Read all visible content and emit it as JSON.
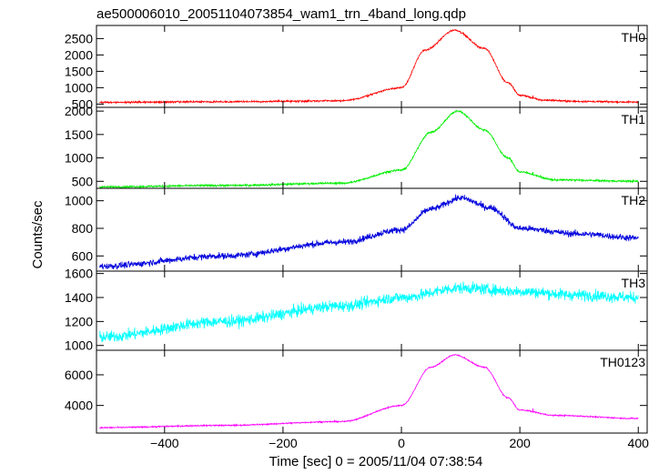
{
  "chart_data": {
    "type": "line",
    "title": "ae500006010_20051104073854_wam1_trn_4band_long.qdp",
    "xlabel": "Time [sec] 0 = 2005/11/04 07:38:54",
    "ylabel": "Counts/sec",
    "xlim": [
      -515,
      415
    ],
    "xticks": [
      -400,
      -200,
      0,
      200,
      400
    ],
    "xtick_labels": [
      "−400",
      "−200",
      "0",
      "200",
      "400"
    ],
    "grid": false,
    "panels": [
      {
        "name": "TH0",
        "color": "#ff0000",
        "ylim": [
          400,
          2900
        ],
        "yticks": [
          500,
          1000,
          1500,
          2000,
          2500
        ],
        "baseline_start": 560,
        "baseline_end": 560,
        "tail_level": 560,
        "peak_time": 90,
        "peak_value": 2750,
        "peak_width": 55,
        "noise": 25,
        "spike": {
          "x": 222,
          "y": 760
        },
        "points": [
          [
            -510,
            555
          ],
          [
            -300,
            570
          ],
          [
            -100,
            600
          ],
          [
            0,
            1000
          ],
          [
            40,
            2150
          ],
          [
            90,
            2760
          ],
          [
            140,
            2200
          ],
          [
            180,
            1150
          ],
          [
            200,
            770
          ],
          [
            240,
            620
          ],
          [
            300,
            580
          ],
          [
            400,
            560
          ]
        ]
      },
      {
        "name": "TH1",
        "color": "#00ee00",
        "ylim": [
          350,
          2080
        ],
        "yticks": [
          500,
          1000,
          1500,
          2000
        ],
        "baseline_start": 380,
        "baseline_end": 470,
        "tail_level": 480,
        "peak_time": 95,
        "peak_value": 2000,
        "peak_width": 52,
        "noise": 20,
        "spike": {
          "x": 222,
          "y": 700
        },
        "points": [
          [
            -510,
            380
          ],
          [
            -300,
            410
          ],
          [
            -100,
            460
          ],
          [
            0,
            740
          ],
          [
            50,
            1550
          ],
          [
            95,
            2000
          ],
          [
            140,
            1600
          ],
          [
            180,
            1000
          ],
          [
            200,
            700
          ],
          [
            260,
            530
          ],
          [
            400,
            500
          ]
        ]
      },
      {
        "name": "TH2",
        "color": "#0000dd",
        "ylim": [
          490,
          1090
        ],
        "yticks": [
          600,
          800,
          1000
        ],
        "baseline_start": 530,
        "baseline_end": 725,
        "tail_level": 740,
        "peak_time": 100,
        "peak_value": 1020,
        "peak_width": 70,
        "noise": 22,
        "spike": null,
        "points": [
          [
            -510,
            525
          ],
          [
            -300,
            600
          ],
          [
            -100,
            700
          ],
          [
            0,
            790
          ],
          [
            50,
            940
          ],
          [
            100,
            1020
          ],
          [
            150,
            950
          ],
          [
            200,
            800
          ],
          [
            300,
            760
          ],
          [
            400,
            730
          ]
        ]
      },
      {
        "name": "TH3",
        "color": "#00ffff",
        "ylim": [
          960,
          1620
        ],
        "yticks": [
          1000,
          1200,
          1400,
          1600
        ],
        "baseline_start": 1080,
        "baseline_end": 1420,
        "tail_level": 1420,
        "peak_time": 100,
        "peak_value": 1480,
        "peak_width": 120,
        "noise": 45,
        "spike": null,
        "points": [
          [
            -510,
            1070
          ],
          [
            -300,
            1200
          ],
          [
            -100,
            1330
          ],
          [
            0,
            1400
          ],
          [
            100,
            1480
          ],
          [
            200,
            1450
          ],
          [
            300,
            1420
          ],
          [
            400,
            1400
          ]
        ]
      },
      {
        "name": "TH0123",
        "color": "#ff00ff",
        "ylim": [
          2200,
          7600
        ],
        "yticks": [
          4000,
          6000
        ],
        "baseline_start": 2550,
        "baseline_end": 3200,
        "tail_level": 3200,
        "peak_time": 90,
        "peak_value": 7300,
        "peak_width": 55,
        "noise": 40,
        "spike": {
          "x": 222,
          "y": 3800
        },
        "points": [
          [
            -510,
            2550
          ],
          [
            -300,
            2700
          ],
          [
            -100,
            2950
          ],
          [
            0,
            4000
          ],
          [
            50,
            6500
          ],
          [
            90,
            7300
          ],
          [
            140,
            6500
          ],
          [
            180,
            4500
          ],
          [
            200,
            3700
          ],
          [
            260,
            3350
          ],
          [
            400,
            3150
          ]
        ]
      }
    ]
  }
}
